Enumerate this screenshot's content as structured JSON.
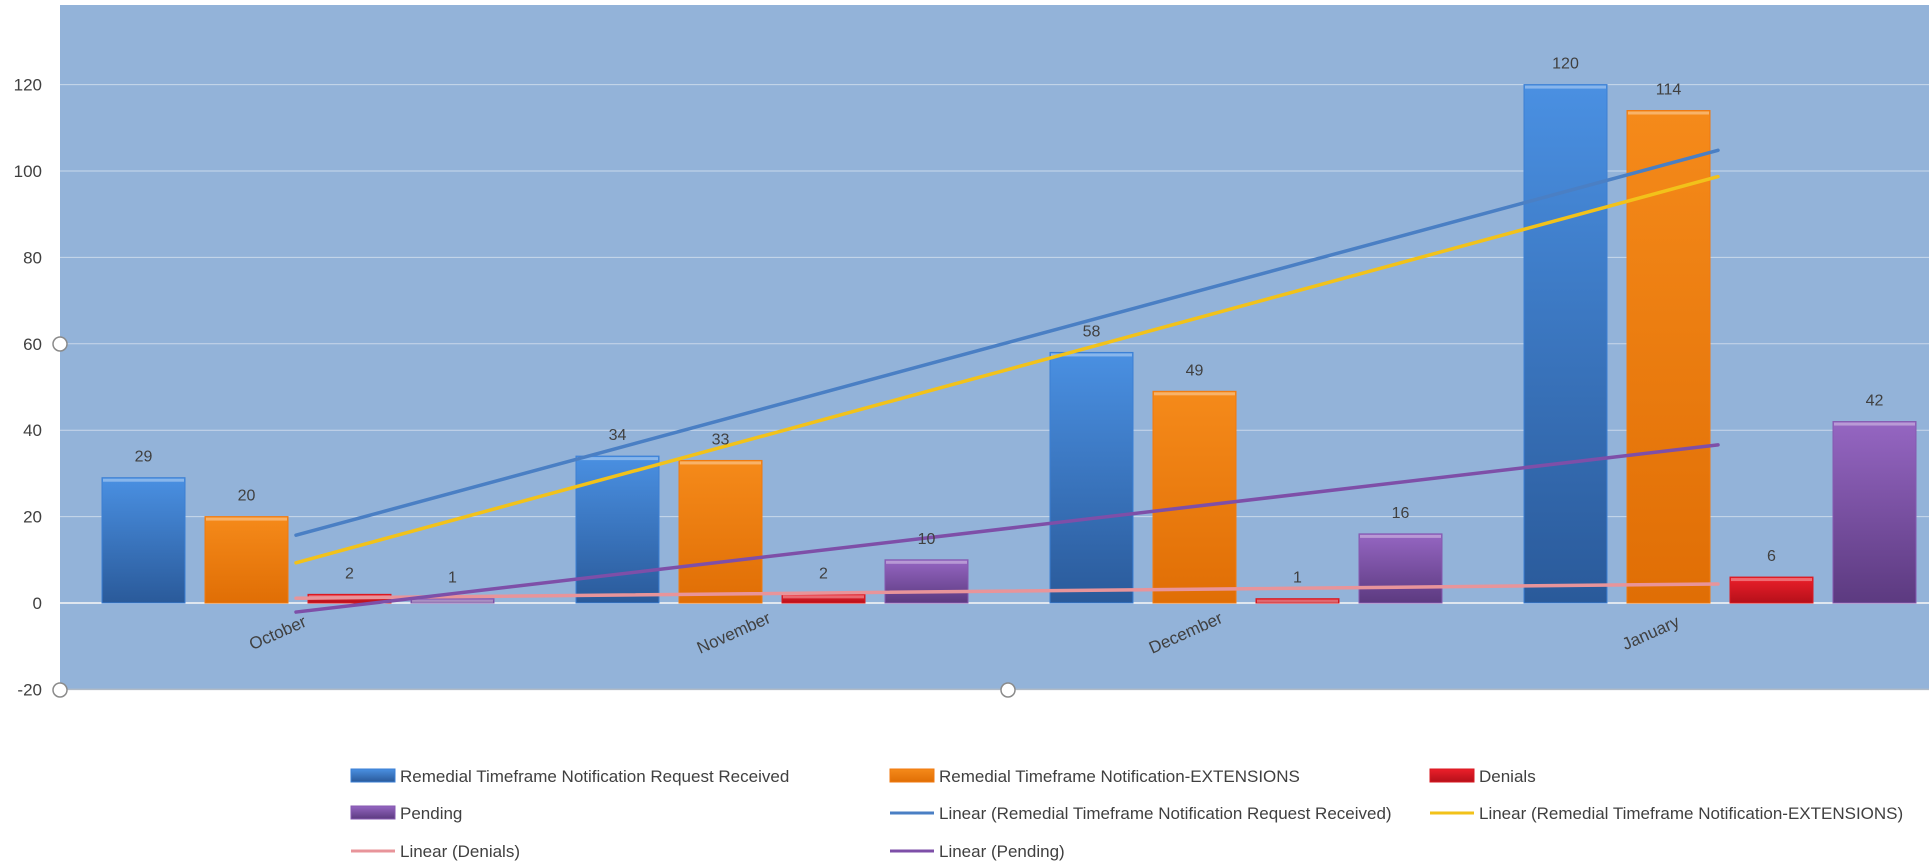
{
  "chart_data": {
    "type": "bar",
    "title": "",
    "xlabel": "",
    "ylabel": "",
    "categories": [
      "October",
      "November",
      "December",
      "January"
    ],
    "ylim": [
      -20,
      120
    ],
    "yticks": [
      -20,
      0,
      20,
      40,
      60,
      80,
      100,
      120
    ],
    "grid": true,
    "legend_position": "bottom",
    "series": [
      {
        "name": "Remedial Timeframe Notification Request Received",
        "values": [
          29,
          34,
          58,
          120
        ],
        "color": "#3b7fd4"
      },
      {
        "name": "Remedial Timeframe Notification-EXTENSIONS",
        "values": [
          20,
          33,
          49,
          114
        ],
        "color": "#f07a10"
      },
      {
        "name": "Denials",
        "values": [
          2,
          2,
          1,
          6
        ],
        "color": "#d81a22"
      },
      {
        "name": "Pending",
        "values": [
          1,
          10,
          16,
          42
        ],
        "color": "#8659b0"
      }
    ],
    "trendlines": [
      {
        "name": "Linear (Remedial Timeframe Notification Request Received)",
        "series": 0,
        "color": "#4a7fc4"
      },
      {
        "name": "Linear (Remedial Timeframe Notification-EXTENSIONS)",
        "series": 1,
        "color": "#f2c21a"
      },
      {
        "name": "Linear (Denials)",
        "series": 2,
        "color": "#e8949a"
      },
      {
        "name": "Linear (Pending)",
        "series": 3,
        "color": "#7e4fa8"
      }
    ],
    "background_color": "#93b3d9"
  }
}
